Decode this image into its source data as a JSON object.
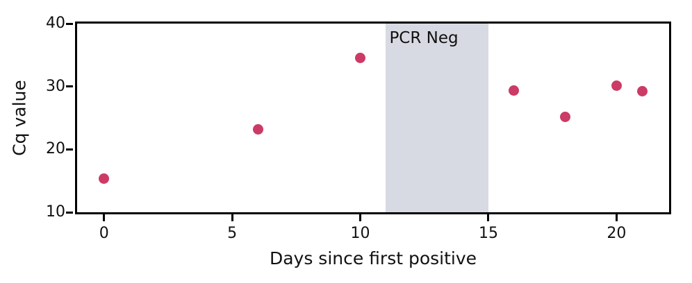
{
  "chart_data": {
    "type": "scatter",
    "title": "",
    "xlabel": "Days since first positive",
    "ylabel": "Cq value",
    "x": [
      0,
      6,
      10,
      16,
      18,
      20,
      21
    ],
    "y": [
      15.3,
      23.2,
      34.5,
      29.4,
      25.2,
      30.1,
      29.2
    ],
    "xlim": [
      -1.05,
      22.05
    ],
    "ylim": [
      10,
      40
    ],
    "xticks": [
      0,
      5,
      10,
      15,
      20
    ],
    "yticks": [
      10,
      20,
      30,
      40
    ],
    "grid": false,
    "legend": null,
    "annotations": [
      {
        "type": "vspan",
        "label": "PCR Neg",
        "x_from": 11,
        "x_to": 15
      }
    ]
  },
  "colors": {
    "point": "#cc3a66",
    "band": "#d7dae2",
    "axis": "#000000",
    "text": "#111111"
  }
}
